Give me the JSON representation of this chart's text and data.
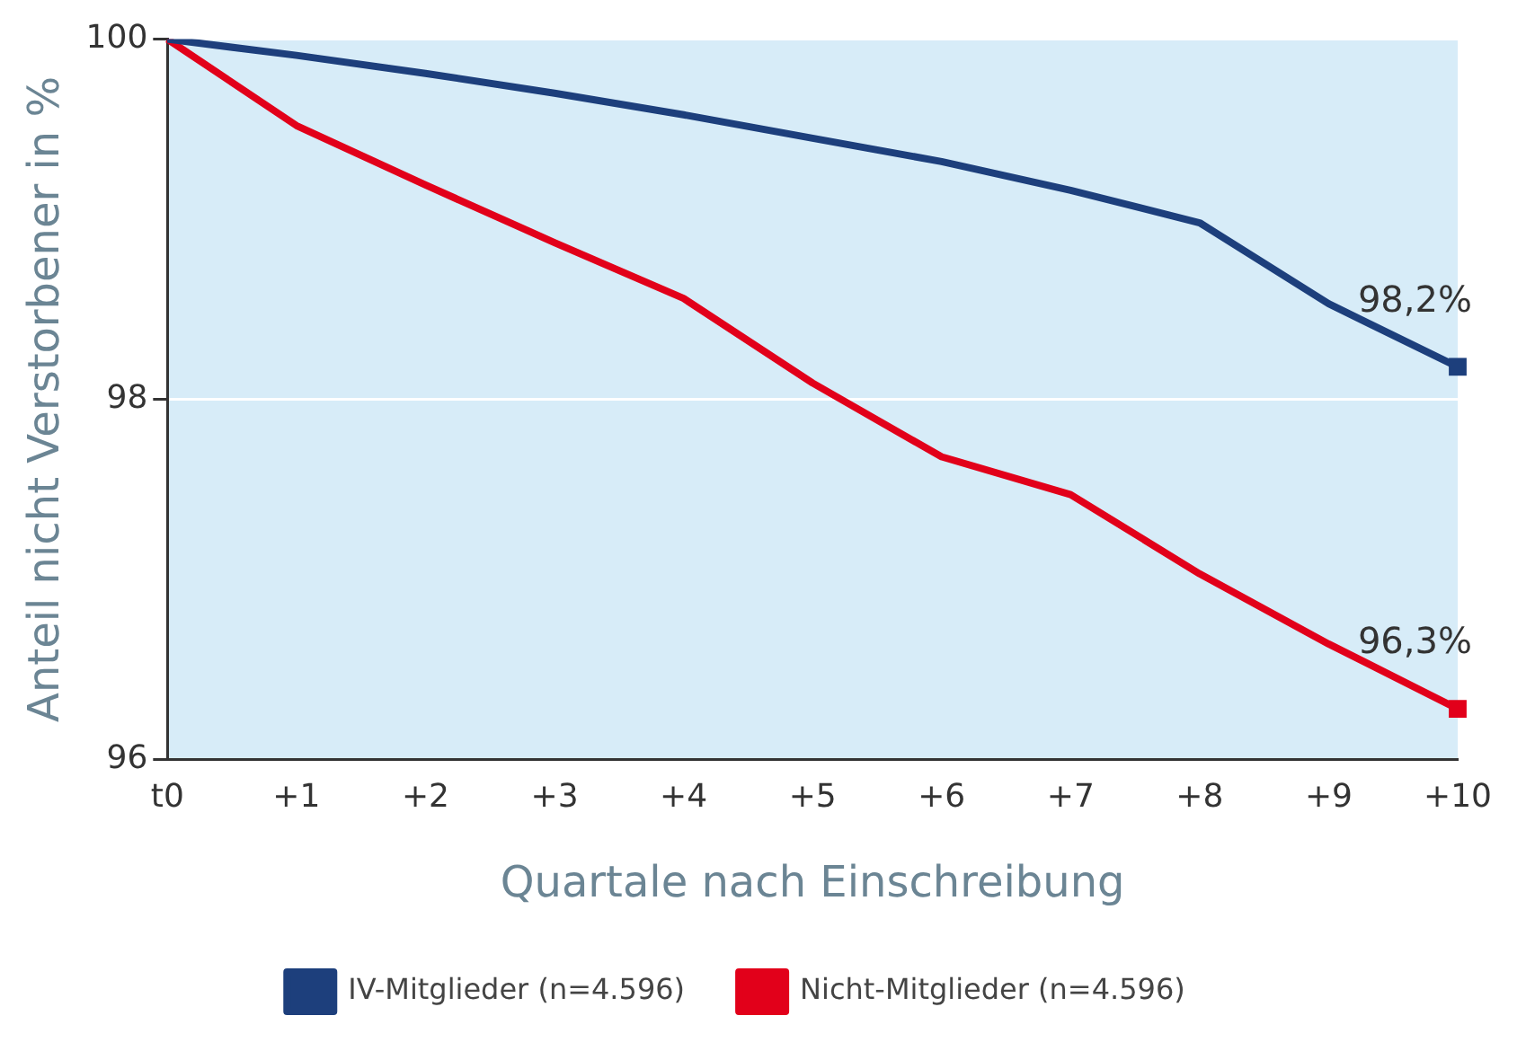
{
  "chart_data": {
    "type": "line",
    "xlabel": "Quartale nach Einschreibung",
    "ylabel": "Anteil nicht Verstorbener in %",
    "categories": [
      "t0",
      "+1",
      "+2",
      "+3",
      "+4",
      "+5",
      "+6",
      "+7",
      "+8",
      "+9",
      "+10"
    ],
    "series": [
      {
        "name": "IV-Mitglieder (n=4.596)",
        "color": "#1d3f7c",
        "values": [
          100,
          99.91,
          99.81,
          99.7,
          99.58,
          99.45,
          99.32,
          99.16,
          98.98,
          98.53,
          98.18
        ]
      },
      {
        "name": "Nicht-Mitglieder (n=4.596)",
        "color": "#e2001a",
        "values": [
          100,
          99.52,
          99.19,
          98.87,
          98.56,
          98.09,
          97.68,
          97.47,
          97.03,
          96.64,
          96.28
        ]
      }
    ],
    "ylim": [
      96,
      100
    ],
    "yticks": [
      96,
      98,
      100
    ],
    "grid": "y",
    "legend": "bottom",
    "line_style": "solid",
    "annotations": [
      {
        "text": "98,2%",
        "x": "+10",
        "y": 98.2
      },
      {
        "text": "96,3%",
        "x": "+10",
        "y": 96.3
      }
    ]
  }
}
